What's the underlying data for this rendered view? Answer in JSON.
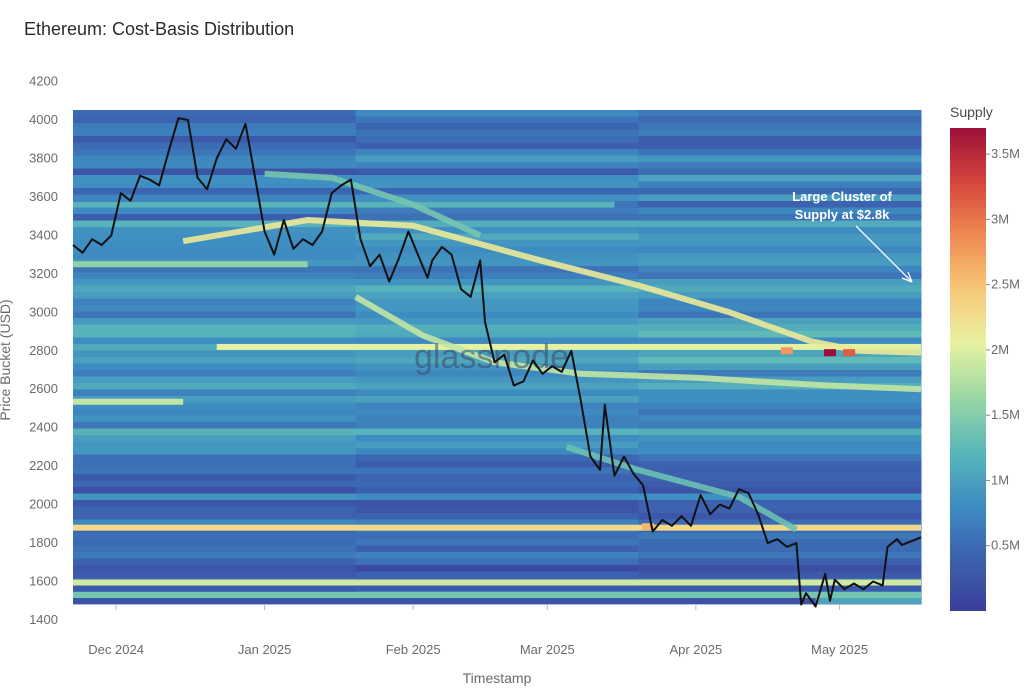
{
  "chart_data": {
    "type": "heatmap",
    "title": "Ethereum: Cost-Basis Distribution",
    "xlabel": "Timestamp",
    "ylabel": "Price Bucket (USD)",
    "ylim": [
      1400,
      4200
    ],
    "y_ticks": [
      1400,
      1600,
      1800,
      2000,
      2200,
      2400,
      2600,
      2800,
      3000,
      3200,
      3400,
      3600,
      3800,
      4000,
      4200
    ],
    "x_ticks": [
      {
        "label": "Dec 2024",
        "date": "2024-12-01"
      },
      {
        "label": "Jan 2025",
        "date": "2025-01-01"
      },
      {
        "label": "Feb 2025",
        "date": "2025-02-01"
      },
      {
        "label": "Mar 2025",
        "date": "2025-03-01"
      },
      {
        "label": "Apr 2025",
        "date": "2025-04-01"
      },
      {
        "label": "May 2025",
        "date": "2025-05-01"
      }
    ],
    "xlim": [
      "2024-11-22",
      "2025-05-18"
    ],
    "watermark": "glassnode",
    "annotation": {
      "text_lines": [
        "Large Cluster of",
        "Supply at $2.8k"
      ],
      "date": "2025-05-18",
      "price": 2800
    },
    "colorbar": {
      "title": "Supply",
      "ticks": [
        {
          "label": "0.5M",
          "value": 500000
        },
        {
          "label": "1M",
          "value": 1000000
        },
        {
          "label": "1.5M",
          "value": 1500000
        },
        {
          "label": "2M",
          "value": 2000000
        },
        {
          "label": "2.5M",
          "value": 2500000
        },
        {
          "label": "3M",
          "value": 3000000
        },
        {
          "label": "3.5M",
          "value": 3500000
        }
      ],
      "range": [
        0,
        3700000
      ],
      "colors": [
        "#3b3f99",
        "#3c62b0",
        "#3e8ec2",
        "#5bb8b9",
        "#9bd8a4",
        "#e8f2a1",
        "#f7c778",
        "#ee8a52",
        "#d6453c",
        "#9b0f3a"
      ]
    },
    "supply_bands": [
      {
        "price": 1880,
        "start": "2024-11-22",
        "end": "2025-05-18",
        "level": 0.62
      },
      {
        "price": 1595,
        "start": "2024-11-22",
        "end": "2025-05-18",
        "level": 0.52
      },
      {
        "price": 1530,
        "start": "2024-11-22",
        "end": "2025-05-18",
        "level": 0.38
      },
      {
        "price": 2820,
        "start": "2024-12-22",
        "end": "2025-05-18",
        "level": 0.55
      },
      {
        "price": 2535,
        "start": "2024-11-22",
        "end": "2024-12-15",
        "level": 0.5
      },
      {
        "price": 3560,
        "start": "2024-11-22",
        "end": "2025-03-15",
        "level": 0.32
      },
      {
        "price": 3250,
        "start": "2024-11-22",
        "end": "2025-01-10",
        "level": 0.42
      }
    ],
    "supply_curves": [
      {
        "level": 0.58,
        "points": [
          [
            "2024-12-15",
            3370
          ],
          [
            "2025-01-10",
            3480
          ],
          [
            "2025-02-01",
            3450
          ],
          [
            "2025-03-01",
            3260
          ],
          [
            "2025-03-20",
            3140
          ],
          [
            "2025-04-08",
            3000
          ],
          [
            "2025-04-25",
            2850
          ],
          [
            "2025-05-05",
            2800
          ],
          [
            "2025-05-18",
            2790
          ]
        ]
      },
      {
        "level": 0.5,
        "points": [
          [
            "2025-01-20",
            3080
          ],
          [
            "2025-02-03",
            2880
          ],
          [
            "2025-02-18",
            2740
          ],
          [
            "2025-03-08",
            2680
          ],
          [
            "2025-04-01",
            2660
          ],
          [
            "2025-04-28",
            2620
          ],
          [
            "2025-05-18",
            2600
          ]
        ]
      },
      {
        "level": 0.38,
        "points": [
          [
            "2025-01-01",
            3720
          ],
          [
            "2025-01-15",
            3700
          ],
          [
            "2025-02-01",
            3560
          ],
          [
            "2025-02-15",
            3400
          ]
        ]
      },
      {
        "level": 0.36,
        "points": [
          [
            "2025-03-05",
            2300
          ],
          [
            "2025-03-20",
            2180
          ],
          [
            "2025-04-10",
            2040
          ],
          [
            "2025-04-22",
            1870
          ]
        ]
      }
    ],
    "hotspots": [
      {
        "date": "2025-04-29",
        "price": 2790,
        "level": 1.0
      },
      {
        "date": "2025-05-03",
        "price": 2790,
        "level": 0.85
      },
      {
        "date": "2025-04-20",
        "price": 2800,
        "level": 0.75
      },
      {
        "date": "2025-03-22",
        "price": 1885,
        "level": 0.7
      }
    ],
    "series": [
      {
        "type": "line",
        "color": "#111111",
        "points": [
          [
            "2024-11-22",
            3350
          ],
          [
            "2024-11-24",
            3310
          ],
          [
            "2024-11-26",
            3380
          ],
          [
            "2024-11-28",
            3350
          ],
          [
            "2024-11-30",
            3400
          ],
          [
            "2024-12-02",
            3620
          ],
          [
            "2024-12-04",
            3580
          ],
          [
            "2024-12-06",
            3710
          ],
          [
            "2024-12-08",
            3690
          ],
          [
            "2024-12-10",
            3660
          ],
          [
            "2024-12-12",
            3840
          ],
          [
            "2024-12-14",
            4010
          ],
          [
            "2024-12-16",
            4000
          ],
          [
            "2024-12-18",
            3700
          ],
          [
            "2024-12-20",
            3640
          ],
          [
            "2024-12-22",
            3800
          ],
          [
            "2024-12-24",
            3900
          ],
          [
            "2024-12-26",
            3850
          ],
          [
            "2024-12-28",
            3980
          ],
          [
            "2024-12-30",
            3700
          ],
          [
            "2025-01-01",
            3420
          ],
          [
            "2025-01-03",
            3300
          ],
          [
            "2025-01-05",
            3480
          ],
          [
            "2025-01-07",
            3330
          ],
          [
            "2025-01-09",
            3380
          ],
          [
            "2025-01-11",
            3350
          ],
          [
            "2025-01-13",
            3420
          ],
          [
            "2025-01-15",
            3620
          ],
          [
            "2025-01-17",
            3660
          ],
          [
            "2025-01-19",
            3690
          ],
          [
            "2025-01-21",
            3380
          ],
          [
            "2025-01-23",
            3240
          ],
          [
            "2025-01-25",
            3300
          ],
          [
            "2025-01-27",
            3160
          ],
          [
            "2025-01-29",
            3280
          ],
          [
            "2025-01-31",
            3420
          ],
          [
            "2025-02-02",
            3300
          ],
          [
            "2025-02-04",
            3180
          ],
          [
            "2025-02-05",
            3270
          ],
          [
            "2025-02-07",
            3340
          ],
          [
            "2025-02-09",
            3300
          ],
          [
            "2025-02-11",
            3120
          ],
          [
            "2025-02-13",
            3080
          ],
          [
            "2025-02-15",
            3270
          ],
          [
            "2025-02-16",
            2950
          ],
          [
            "2025-02-18",
            2740
          ],
          [
            "2025-02-20",
            2780
          ],
          [
            "2025-02-22",
            2620
          ],
          [
            "2025-02-24",
            2640
          ],
          [
            "2025-02-26",
            2750
          ],
          [
            "2025-02-28",
            2680
          ],
          [
            "2025-03-02",
            2720
          ],
          [
            "2025-03-04",
            2690
          ],
          [
            "2025-03-06",
            2800
          ],
          [
            "2025-03-08",
            2540
          ],
          [
            "2025-03-10",
            2250
          ],
          [
            "2025-03-12",
            2180
          ],
          [
            "2025-03-13",
            2520
          ],
          [
            "2025-03-15",
            2150
          ],
          [
            "2025-03-17",
            2250
          ],
          [
            "2025-03-19",
            2160
          ],
          [
            "2025-03-21",
            2100
          ],
          [
            "2025-03-23",
            1860
          ],
          [
            "2025-03-25",
            1920
          ],
          [
            "2025-03-27",
            1890
          ],
          [
            "2025-03-29",
            1940
          ],
          [
            "2025-03-31",
            1890
          ],
          [
            "2025-04-02",
            2050
          ],
          [
            "2025-04-04",
            1950
          ],
          [
            "2025-04-06",
            2000
          ],
          [
            "2025-04-08",
            1980
          ],
          [
            "2025-04-10",
            2080
          ],
          [
            "2025-04-12",
            2060
          ],
          [
            "2025-04-14",
            1950
          ],
          [
            "2025-04-16",
            1800
          ],
          [
            "2025-04-18",
            1820
          ],
          [
            "2025-04-20",
            1780
          ],
          [
            "2025-04-22",
            1800
          ],
          [
            "2025-04-23",
            1480
          ],
          [
            "2025-04-24",
            1540
          ],
          [
            "2025-04-26",
            1470
          ],
          [
            "2025-04-28",
            1640
          ],
          [
            "2025-04-29",
            1500
          ],
          [
            "2025-04-30",
            1610
          ],
          [
            "2025-05-02",
            1560
          ],
          [
            "2025-05-04",
            1590
          ],
          [
            "2025-05-06",
            1560
          ],
          [
            "2025-05-08",
            1600
          ],
          [
            "2025-05-10",
            1580
          ],
          [
            "2025-05-11",
            1780
          ],
          [
            "2025-05-13",
            1820
          ],
          [
            "2025-05-14",
            1790
          ],
          [
            "2025-05-16",
            1810
          ],
          [
            "2025-05-18",
            1830
          ]
        ]
      }
    ]
  }
}
